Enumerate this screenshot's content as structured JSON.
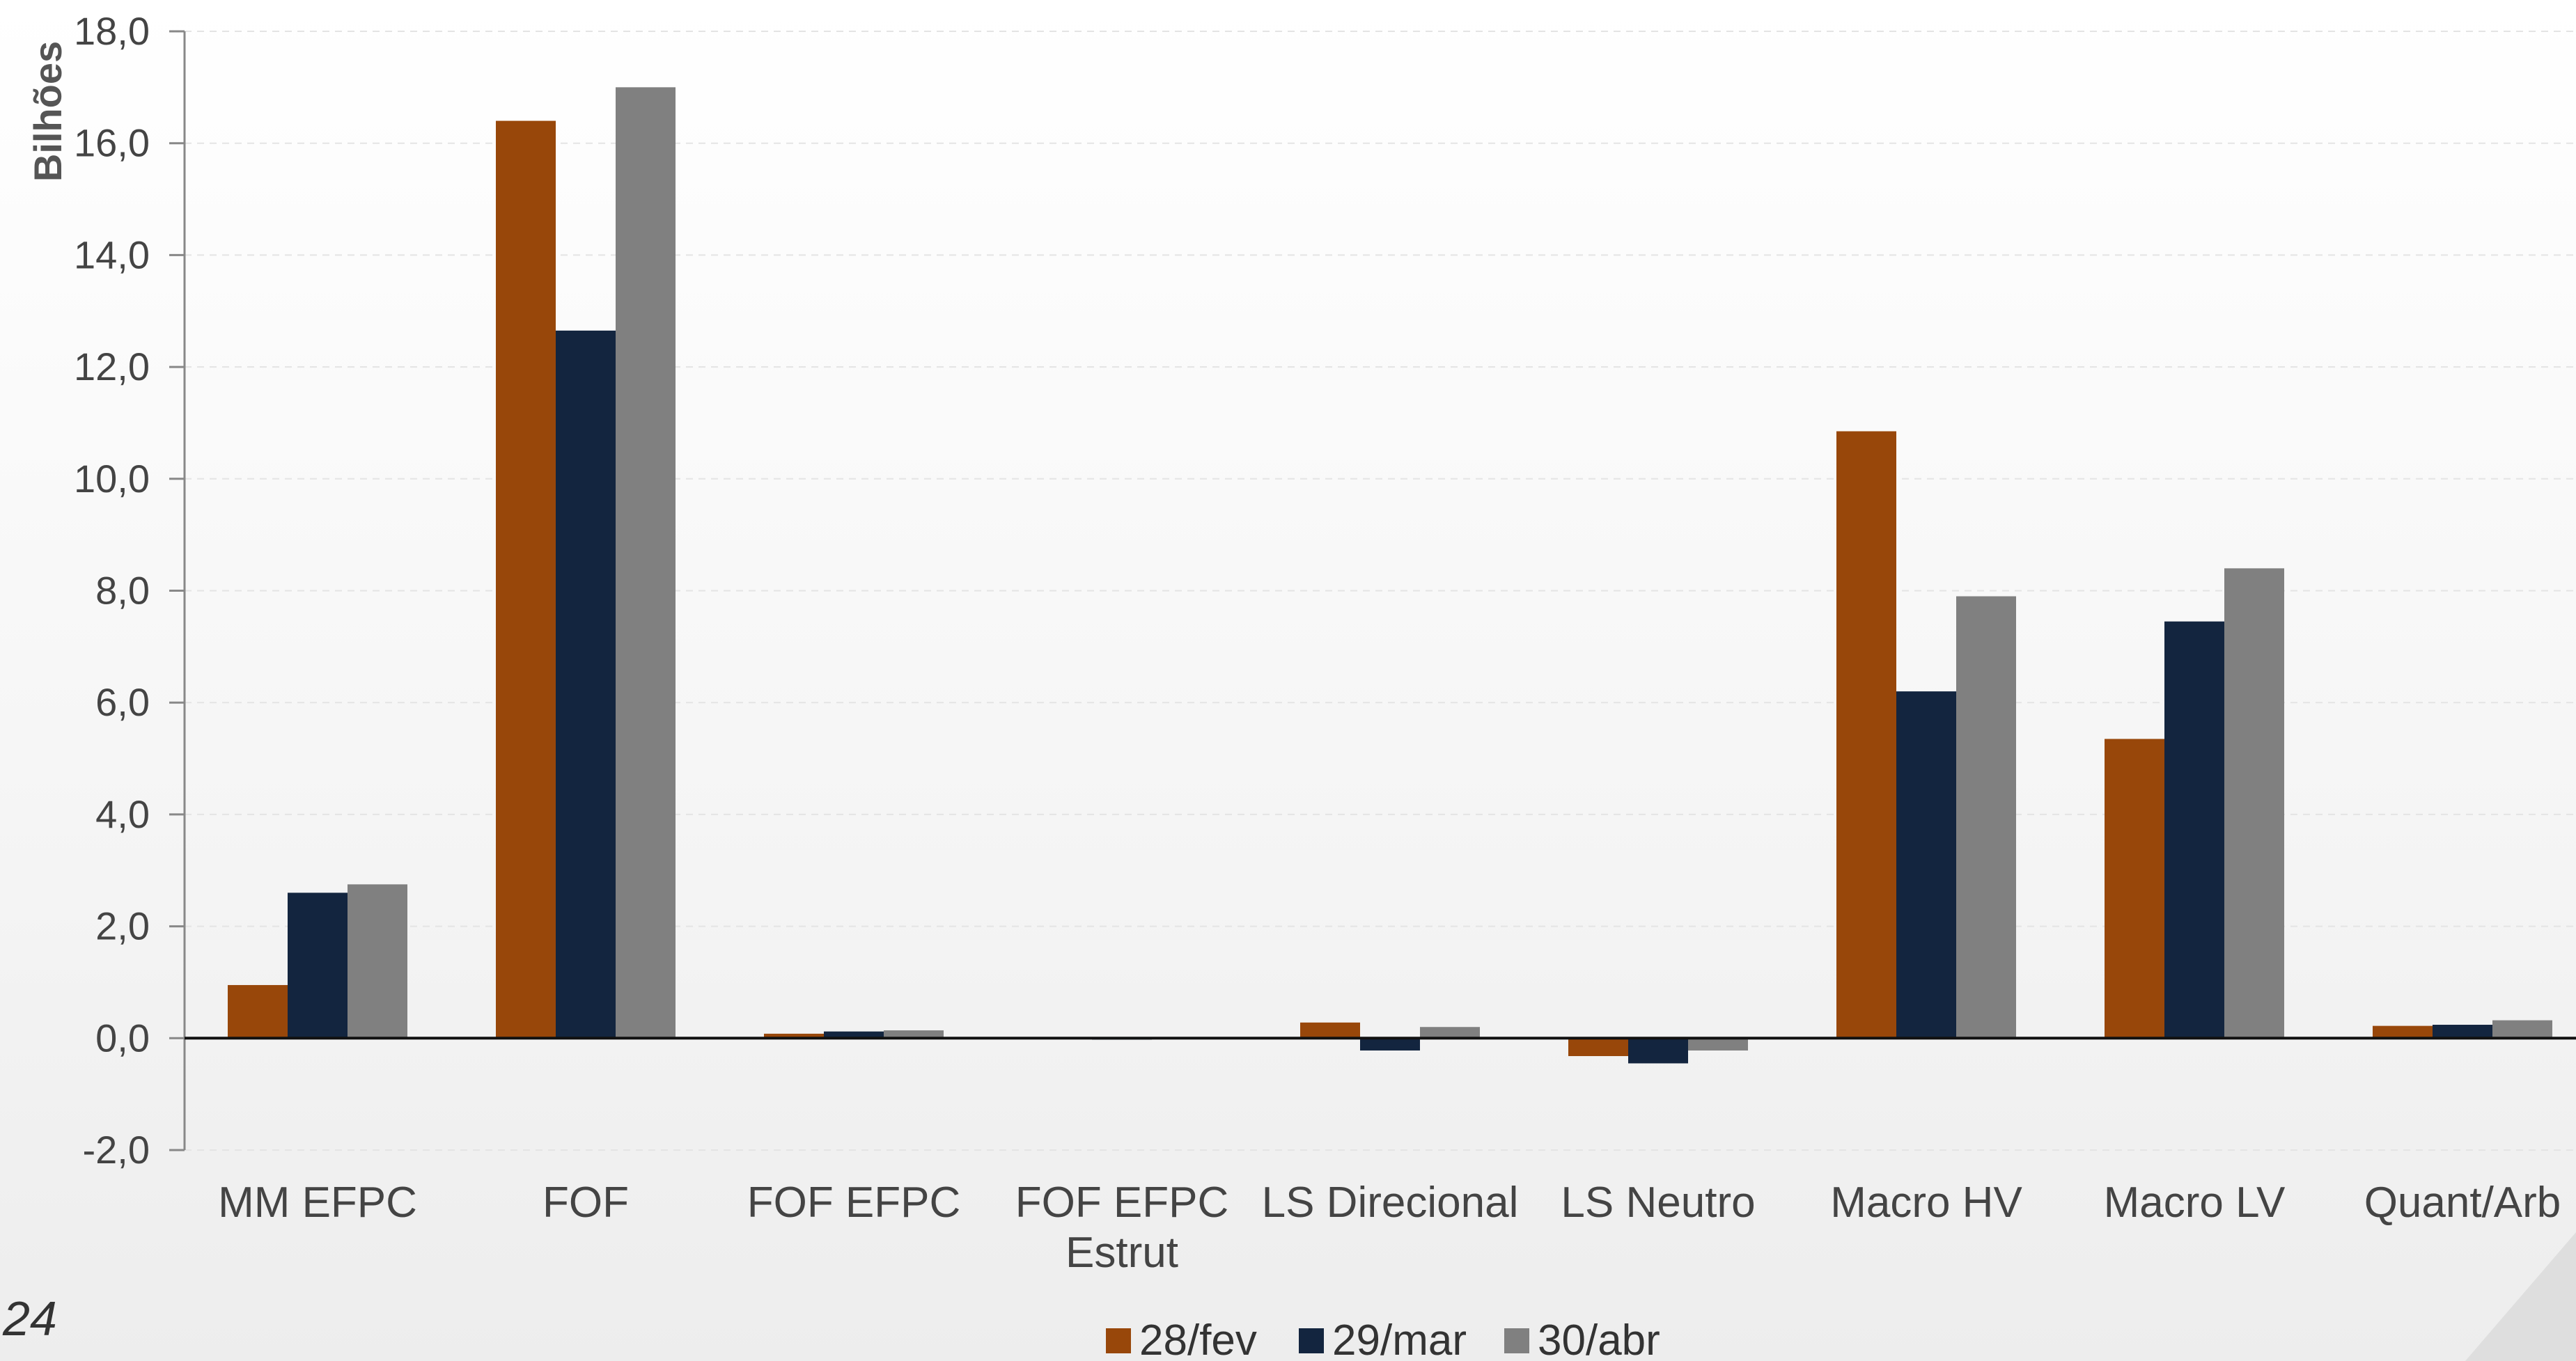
{
  "page_number": "24",
  "chart_data": {
    "type": "bar",
    "title": "",
    "ylabel": "Bilhões",
    "xlabel": "",
    "ylim": [
      -2.0,
      18.0
    ],
    "yticks": [
      "-2,0",
      "0,0",
      "2,0",
      "4,0",
      "6,0",
      "8,0",
      "10,0",
      "12,0",
      "14,0",
      "16,0",
      "18,0"
    ],
    "categories": [
      [
        "MM EFPC"
      ],
      [
        "FOF"
      ],
      [
        "FOF EFPC"
      ],
      [
        "FOF EFPC",
        "Estrut"
      ],
      [
        "LS Direcional"
      ],
      [
        "LS Neutro"
      ],
      [
        "Macro HV"
      ],
      [
        "Macro LV"
      ],
      [
        "Quant/Arb"
      ]
    ],
    "series": [
      {
        "name": "28/fev",
        "color": "#98470a",
        "values": [
          0.95,
          16.4,
          0.08,
          0.01,
          0.28,
          -0.32,
          10.85,
          5.35,
          0.22
        ]
      },
      {
        "name": "29/mar",
        "color": "#13253f",
        "values": [
          2.6,
          12.65,
          0.12,
          0.0,
          -0.22,
          -0.45,
          6.2,
          7.45,
          0.24
        ]
      },
      {
        "name": "30/abr",
        "color": "#808080",
        "values": [
          2.75,
          17.0,
          0.14,
          0.01,
          0.2,
          -0.22,
          7.9,
          8.4,
          0.32
        ]
      }
    ],
    "grid": true,
    "legend": "bottom-center"
  }
}
